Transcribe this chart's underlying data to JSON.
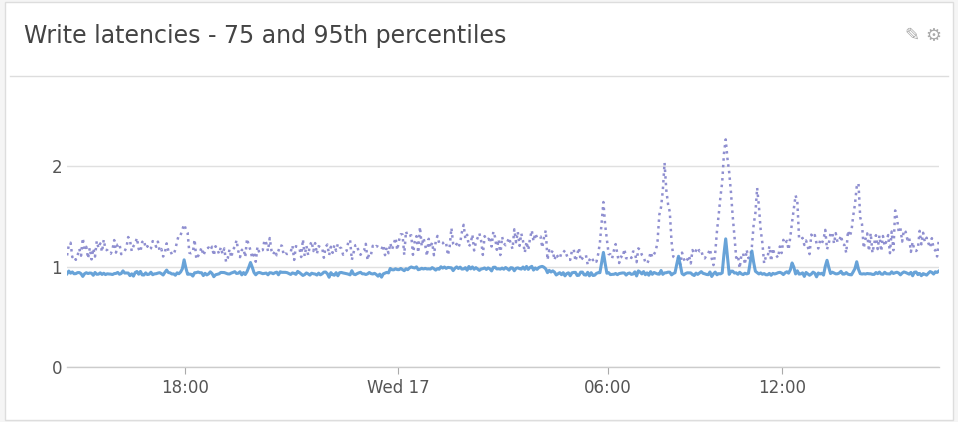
{
  "title": "Write latencies - 75 and 95th percentiles",
  "title_fontsize": 17,
  "background_color": "#f5f5f5",
  "panel_color": "#ffffff",
  "plot_bg_color": "#ffffff",
  "line75_color": "#5b9bd5",
  "line95_color": "#7b7bc8",
  "ylim": [
    0,
    2.6
  ],
  "yticks": [
    0,
    1,
    2
  ],
  "grid_color": "#e0e0e0",
  "tick_color": "#555555",
  "n_points": 500,
  "x_tick_labels": [
    "18:00",
    "Wed 17",
    "06:00",
    "12:00"
  ],
  "x_tick_positions": [
    0.135,
    0.38,
    0.62,
    0.82
  ]
}
